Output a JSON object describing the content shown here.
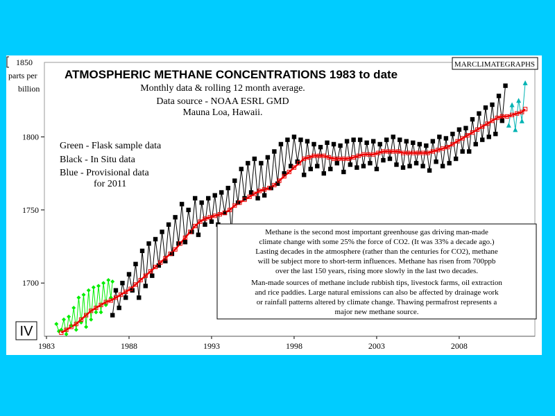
{
  "chart_data": {
    "type": "line",
    "title": "ATMOSPHERIC METHANE CONCENTRATIONS 1983 to date",
    "subtitle_lines": [
      "Monthly data & rolling 12 month average.",
      "Data source - NOAA ESRL GMD",
      "Mauna Loa, Hawaii."
    ],
    "ylabel_lines": [
      "parts per",
      "billion"
    ],
    "brand": "MARCLIMATEGRAPHS",
    "panel_label": "IV",
    "legend_lines": [
      "Green - Flask sample data",
      "Black - In Situ data",
      "Blue - Provisional data",
      "for 2011"
    ],
    "annotation_paragraph_1": [
      "Methane is the second most important greenhouse gas driving man-made",
      "climate change with some 25% the force of CO2. (It was 33% a decade ago.)",
      "Lasting decades in the atmosphere (rather than the centuries for CO2), methane",
      "will be subject more to short-term influences. Methane has risen from 700ppb",
      "over the last 150 years, rising more slowly in the last two decades."
    ],
    "annotation_paragraph_2": [
      "Man-made sources of methane include rubbish tips, livestock farms, oil extraction",
      "and rice paddies. Large natural emissions can also be affected by drainage work",
      "or rainfall patterns altered by climate change. Thawing permafrost represents a",
      "major new methane source."
    ],
    "xlim": [
      1983,
      2012.5
    ],
    "ylim": [
      1665,
      1850
    ],
    "xticks": [
      1983,
      1988,
      1993,
      1998,
      2003,
      2008
    ],
    "xtick_labels": [
      "1983",
      "1988",
      "1993",
      "1998",
      "2003",
      "2008"
    ],
    "yticks": [
      1700,
      1750,
      1800,
      1850
    ],
    "ytick_labels": [
      "1700",
      "1750",
      "1800",
      "1850"
    ],
    "grid": false,
    "colors": {
      "flask": "#00ee00",
      "insitu": "#000000",
      "provisional": "#00b3b3",
      "average": "#ee0000",
      "background": "#00ccff"
    },
    "series": [
      {
        "name": "Green - Flask sample data",
        "x": [
          1983.6,
          1983.75,
          1983.9,
          1984.05,
          1984.2,
          1984.35,
          1984.5,
          1984.65,
          1984.8,
          1984.95,
          1985.1,
          1985.25,
          1985.4,
          1985.55,
          1985.7,
          1985.85,
          1986.0,
          1986.15,
          1986.3,
          1986.45,
          1986.6,
          1986.75,
          1986.9,
          1987.0
        ],
        "y": [
          1672,
          1667,
          1668,
          1675,
          1665,
          1677,
          1671,
          1683,
          1668,
          1690,
          1673,
          1692,
          1670,
          1695,
          1675,
          1697,
          1680,
          1698,
          1680,
          1700,
          1685,
          1702,
          1690,
          1701
        ]
      },
      {
        "name": "Black - In Situ data",
        "x": [
          1987.0,
          1987.2,
          1987.4,
          1987.6,
          1987.8,
          1988.0,
          1988.2,
          1988.4,
          1988.6,
          1988.8,
          1989.0,
          1989.2,
          1989.4,
          1989.6,
          1989.8,
          1990.0,
          1990.2,
          1990.4,
          1990.6,
          1990.8,
          1991.0,
          1991.2,
          1991.4,
          1991.6,
          1991.8,
          1992.0,
          1992.2,
          1992.4,
          1992.6,
          1992.8,
          1993.0,
          1993.2,
          1993.4,
          1993.6,
          1993.8,
          1994.0,
          1994.2,
          1994.4,
          1994.6,
          1994.8,
          1995.0,
          1995.2,
          1995.4,
          1995.6,
          1995.8,
          1996.0,
          1996.2,
          1996.4,
          1996.6,
          1996.8,
          1997.0,
          1997.2,
          1997.4,
          1997.6,
          1997.8,
          1998.0,
          1998.2,
          1998.4,
          1998.6,
          1998.8,
          1999.0,
          1999.2,
          1999.4,
          1999.6,
          1999.8,
          2000.0,
          2000.2,
          2000.4,
          2000.6,
          2000.8,
          2001.0,
          2001.2,
          2001.4,
          2001.6,
          2001.8,
          2002.0,
          2002.2,
          2002.4,
          2002.6,
          2002.8,
          2003.0,
          2003.2,
          2003.4,
          2003.6,
          2003.8,
          2004.0,
          2004.2,
          2004.4,
          2004.6,
          2004.8,
          2005.0,
          2005.2,
          2005.4,
          2005.6,
          2005.8,
          2006.0,
          2006.2,
          2006.4,
          2006.6,
          2006.8,
          2007.0,
          2007.2,
          2007.4,
          2007.6,
          2007.8,
          2008.0,
          2008.2,
          2008.4,
          2008.6,
          2008.8,
          2009.0,
          2009.2,
          2009.4,
          2009.6,
          2009.8,
          2010.0,
          2010.2,
          2010.4,
          2010.6,
          2010.8
        ],
        "y": [
          1678,
          1695,
          1683,
          1700,
          1690,
          1706,
          1695,
          1713,
          1690,
          1722,
          1698,
          1727,
          1705,
          1730,
          1712,
          1735,
          1715,
          1740,
          1720,
          1745,
          1727,
          1754,
          1728,
          1750,
          1735,
          1758,
          1733,
          1755,
          1740,
          1758,
          1742,
          1760,
          1740,
          1762,
          1748,
          1765,
          1735,
          1770,
          1755,
          1778,
          1758,
          1782,
          1762,
          1785,
          1758,
          1782,
          1760,
          1786,
          1765,
          1790,
          1768,
          1795,
          1775,
          1798,
          1780,
          1800,
          1783,
          1798,
          1774,
          1797,
          1778,
          1795,
          1780,
          1793,
          1775,
          1796,
          1778,
          1795,
          1782,
          1794,
          1776,
          1797,
          1781,
          1798,
          1779,
          1798,
          1780,
          1796,
          1782,
          1797,
          1778,
          1795,
          1784,
          1798,
          1785,
          1800,
          1781,
          1798,
          1779,
          1797,
          1780,
          1796,
          1782,
          1795,
          1780,
          1794,
          1777,
          1797,
          1783,
          1800,
          1780,
          1799,
          1782,
          1802,
          1785,
          1805,
          1790,
          1806,
          1790,
          1812,
          1795,
          1816,
          1798,
          1820,
          1800,
          1822,
          1802,
          1828,
          1811,
          1835
        ]
      },
      {
        "name": "Blue - Provisional data",
        "x": [
          2011.0,
          2011.2,
          2011.4,
          2011.6,
          2011.8,
          2012.0
        ],
        "y": [
          1808,
          1822,
          1805,
          1825,
          1811,
          1837
        ]
      },
      {
        "name": "rolling 12 month average",
        "x": [
          1983.9,
          1984.2,
          1984.5,
          1984.8,
          1985.1,
          1985.4,
          1985.7,
          1986.0,
          1986.3,
          1986.6,
          1986.9,
          1987.2,
          1987.5,
          1987.8,
          1988.1,
          1988.4,
          1988.7,
          1989.0,
          1989.3,
          1989.6,
          1989.9,
          1990.2,
          1990.5,
          1990.8,
          1991.1,
          1991.4,
          1991.7,
          1992.0,
          1992.3,
          1992.6,
          1992.9,
          1993.2,
          1993.5,
          1993.8,
          1994.1,
          1994.4,
          1994.7,
          1995.0,
          1995.3,
          1995.6,
          1995.9,
          1996.2,
          1996.5,
          1996.8,
          1997.1,
          1997.4,
          1997.7,
          1998.0,
          1998.3,
          1998.6,
          1998.9,
          1999.2,
          1999.5,
          1999.8,
          2000.1,
          2000.4,
          2000.7,
          2001.0,
          2001.3,
          2001.6,
          2001.9,
          2002.2,
          2002.5,
          2002.8,
          2003.1,
          2003.4,
          2003.7,
          2004.0,
          2004.3,
          2004.6,
          2004.9,
          2005.2,
          2005.5,
          2005.8,
          2006.1,
          2006.4,
          2006.7,
          2007.0,
          2007.3,
          2007.6,
          2007.9,
          2008.2,
          2008.5,
          2008.8,
          2009.1,
          2009.4,
          2009.7,
          2010.0,
          2010.3,
          2010.6,
          2010.9,
          2011.2,
          2011.5,
          2011.8,
          2012.0
        ],
        "y": [
          1666,
          1668,
          1670,
          1672,
          1675,
          1678,
          1681,
          1683,
          1685,
          1687,
          1688,
          1690,
          1692,
          1694,
          1696,
          1699,
          1702,
          1705,
          1708,
          1711,
          1714,
          1717,
          1720,
          1723,
          1727,
          1731,
          1735,
          1739,
          1742,
          1744,
          1745,
          1746,
          1747,
          1748,
          1750,
          1753,
          1755,
          1757,
          1759,
          1761,
          1763,
          1764,
          1765,
          1767,
          1770,
          1773,
          1776,
          1779,
          1782,
          1785,
          1786,
          1787,
          1787,
          1787,
          1786,
          1785,
          1785,
          1785,
          1785,
          1786,
          1787,
          1788,
          1788,
          1788,
          1789,
          1790,
          1790,
          1790,
          1790,
          1789,
          1789,
          1789,
          1789,
          1789,
          1789,
          1790,
          1791,
          1792,
          1793,
          1795,
          1797,
          1799,
          1801,
          1803,
          1805,
          1807,
          1809,
          1811,
          1813,
          1814,
          1814,
          1815,
          1816,
          1817,
          1819
        ]
      }
    ]
  }
}
